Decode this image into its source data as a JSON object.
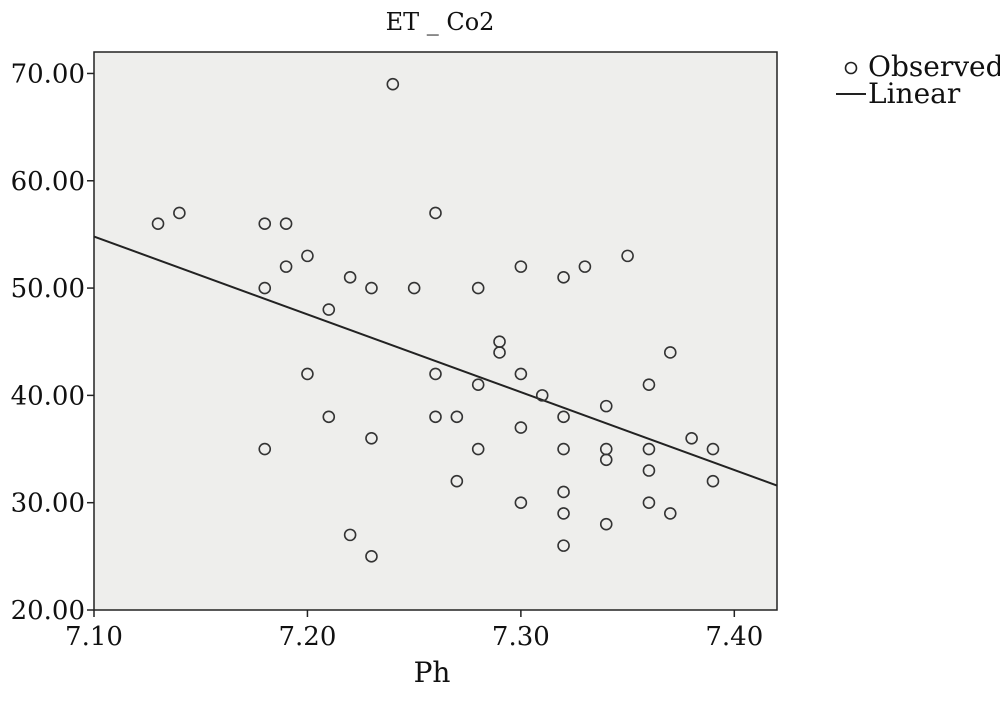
{
  "chart_data": {
    "type": "scatter",
    "title": "ET _ Co2",
    "xlabel": "Ph",
    "ylabel": "",
    "xlim": [
      7.1,
      7.42
    ],
    "ylim": [
      20,
      72
    ],
    "x_ticks": [
      7.1,
      7.2,
      7.3,
      7.4
    ],
    "x_tick_labels": [
      "7.10",
      "7.20",
      "7.30",
      "7.40"
    ],
    "y_ticks": [
      20,
      30,
      40,
      50,
      60,
      70
    ],
    "y_tick_labels": [
      "20.00",
      "30.00",
      "40.00",
      "50.00",
      "60.00",
      "70.00"
    ],
    "legend": {
      "position": "top-right",
      "observed_label": "Observed",
      "linear_label": "Linear"
    },
    "grid": false,
    "series": [
      {
        "name": "Observed",
        "kind": "points",
        "points": [
          [
            7.13,
            56
          ],
          [
            7.14,
            57
          ],
          [
            7.18,
            56
          ],
          [
            7.18,
            50
          ],
          [
            7.18,
            35
          ],
          [
            7.19,
            56
          ],
          [
            7.19,
            52
          ],
          [
            7.2,
            53
          ],
          [
            7.2,
            42
          ],
          [
            7.21,
            48
          ],
          [
            7.21,
            38
          ],
          [
            7.22,
            51
          ],
          [
            7.22,
            27
          ],
          [
            7.23,
            50
          ],
          [
            7.23,
            36
          ],
          [
            7.23,
            25
          ],
          [
            7.24,
            69
          ],
          [
            7.25,
            50
          ],
          [
            7.26,
            57
          ],
          [
            7.26,
            42
          ],
          [
            7.26,
            38
          ],
          [
            7.27,
            38
          ],
          [
            7.27,
            32
          ],
          [
            7.28,
            50
          ],
          [
            7.28,
            41
          ],
          [
            7.28,
            35
          ],
          [
            7.29,
            45
          ],
          [
            7.29,
            44
          ],
          [
            7.3,
            52
          ],
          [
            7.3,
            42
          ],
          [
            7.3,
            37
          ],
          [
            7.3,
            30
          ],
          [
            7.31,
            40
          ],
          [
            7.32,
            51
          ],
          [
            7.32,
            38
          ],
          [
            7.32,
            35
          ],
          [
            7.32,
            31
          ],
          [
            7.32,
            29
          ],
          [
            7.32,
            26
          ],
          [
            7.33,
            52
          ],
          [
            7.34,
            39
          ],
          [
            7.34,
            35
          ],
          [
            7.34,
            34
          ],
          [
            7.34,
            28
          ],
          [
            7.35,
            53
          ],
          [
            7.36,
            41
          ],
          [
            7.36,
            35
          ],
          [
            7.36,
            33
          ],
          [
            7.36,
            30
          ],
          [
            7.37,
            44
          ],
          [
            7.37,
            29
          ],
          [
            7.38,
            36
          ],
          [
            7.39,
            35
          ],
          [
            7.39,
            32
          ]
        ]
      },
      {
        "name": "Linear",
        "kind": "line",
        "points": [
          [
            7.1,
            54.8
          ],
          [
            7.42,
            31.6
          ]
        ]
      }
    ]
  }
}
